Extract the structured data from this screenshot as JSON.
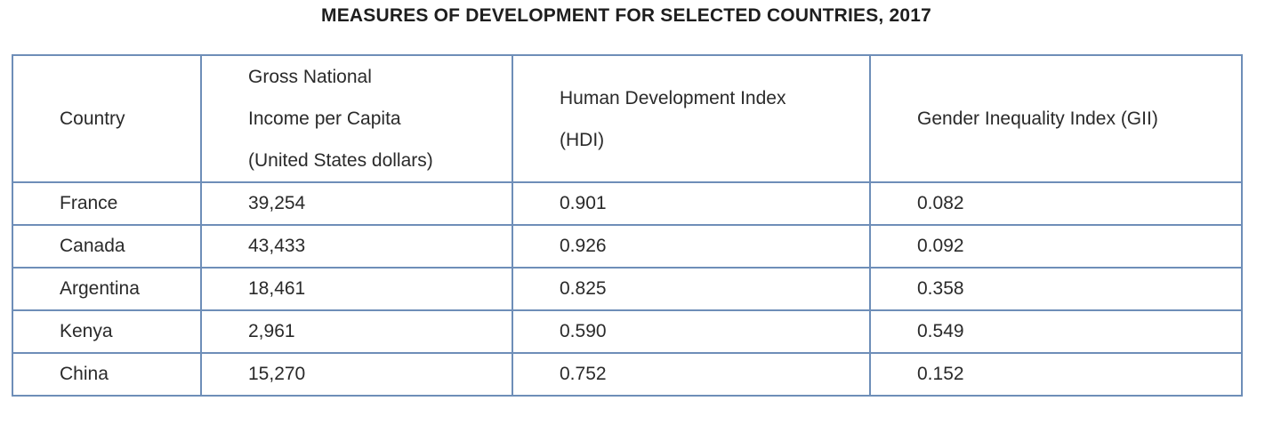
{
  "title": "MEASURES OF DEVELOPMENT FOR SELECTED COUNTRIES, 2017",
  "table": {
    "headers": [
      "Country",
      "Gross National\nIncome per Capita\n(United States dollars)",
      "Human Development Index\n(HDI)",
      "Gender Inequality Index (GII)"
    ],
    "rows": [
      [
        "France",
        "39,254",
        "0.901",
        "0.082"
      ],
      [
        "Canada",
        "43,433",
        "0.926",
        "0.092"
      ],
      [
        "Argentina",
        "18,461",
        "0.825",
        "0.358"
      ],
      [
        "Kenya",
        "2,961",
        "0.590",
        "0.549"
      ],
      [
        "China",
        "15,270",
        "0.752",
        "0.152"
      ]
    ]
  },
  "colors": {
    "border": "#6e8eb8",
    "text": "#2a2a2a"
  }
}
